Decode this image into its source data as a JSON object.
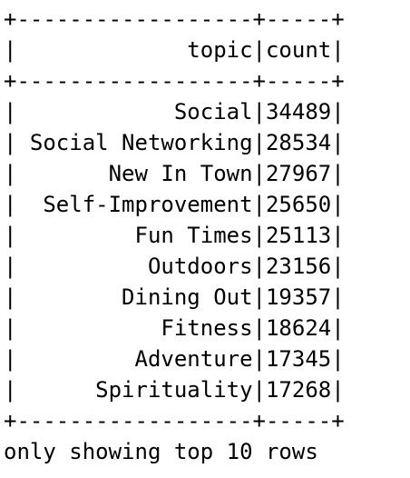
{
  "table": {
    "border_line": "+------------------+-----+",
    "header_line": "|             topic|count|",
    "columns": [
      "topic",
      "count"
    ],
    "rows": [
      {
        "topic": "Social",
        "count": "34489",
        "line": "|            Social|34489|"
      },
      {
        "topic": "Social Networking",
        "count": "28534",
        "line": "| Social Networking|28534|"
      },
      {
        "topic": "New In Town",
        "count": "27967",
        "line": "|       New In Town|27967|"
      },
      {
        "topic": "Self-Improvement",
        "count": "25650",
        "line": "|  Self-Improvement|25650|"
      },
      {
        "topic": "Fun Times",
        "count": "25113",
        "line": "|         Fun Times|25113|"
      },
      {
        "topic": "Outdoors",
        "count": "23156",
        "line": "|          Outdoors|23156|"
      },
      {
        "topic": "Dining Out",
        "count": "19357",
        "line": "|        Dining Out|19357|"
      },
      {
        "topic": "Fitness",
        "count": "18624",
        "line": "|           Fitness|18624|"
      },
      {
        "topic": "Adventure",
        "count": "17345",
        "line": "|         Adventure|17345|"
      },
      {
        "topic": "Spirituality",
        "count": "17268",
        "line": "|      Spirituality|17268|"
      }
    ]
  },
  "footer": "only showing top 10 rows"
}
